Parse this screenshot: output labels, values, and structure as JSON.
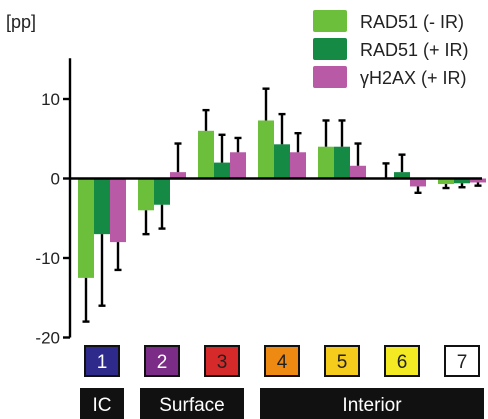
{
  "chart_data": {
    "type": "bar",
    "ylabel": "[pp]",
    "ylim": [
      -20,
      15
    ],
    "yticks": [
      -20,
      -10,
      0,
      10
    ],
    "grid": false,
    "legend_position": "top-right",
    "categories": [
      "1",
      "2",
      "3",
      "4",
      "5",
      "6",
      "7"
    ],
    "category_colors": [
      "#2e2a8c",
      "#7b2c86",
      "#d62a2a",
      "#ee8a11",
      "#f6cc1c",
      "#f4ea24",
      "#ffffff"
    ],
    "category_text_colors": [
      "#ffffff",
      "#ffffff",
      "#222222",
      "#222222",
      "#222222",
      "#222222",
      "#222222"
    ],
    "groups": [
      {
        "label": "IC",
        "from": 0,
        "to": 0
      },
      {
        "label": "Surface",
        "from": 1,
        "to": 2
      },
      {
        "label": "Interior",
        "from": 3,
        "to": 6
      }
    ],
    "series": [
      {
        "name": "RAD51 (- IR)",
        "color": "#6cbf3a",
        "values": [
          -12.5,
          -4.0,
          6.0,
          7.3,
          4.0,
          0.1,
          -0.7
        ],
        "errors": [
          5.5,
          3.0,
          2.6,
          4.0,
          3.3,
          1.8,
          0.5
        ]
      },
      {
        "name": "RAD51 (+ IR)",
        "color": "#148a45",
        "values": [
          -7.0,
          -3.3,
          2.0,
          4.3,
          4.0,
          0.8,
          -0.6
        ],
        "errors": [
          9.0,
          3.0,
          3.5,
          3.8,
          3.3,
          2.2,
          0.5
        ]
      },
      {
        "name": "γH2AX (+ IR)",
        "color": "#b85aa6",
        "values": [
          -8.0,
          0.8,
          3.3,
          3.3,
          1.6,
          -1.0,
          -0.5
        ],
        "errors": [
          3.5,
          3.6,
          1.8,
          2.4,
          2.8,
          0.8,
          0.4
        ]
      }
    ]
  }
}
